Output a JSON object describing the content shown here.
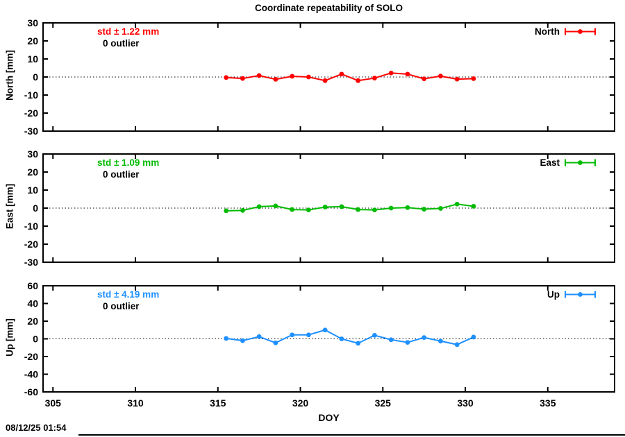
{
  "title": "Coordinate repeatability of SOLO",
  "xlabel": "DOY",
  "timestamp": "08/12/25 01:54",
  "chart_data": {
    "type": "line",
    "x_axis": {
      "label": "DOY",
      "xlim": [
        304.4,
        339.05
      ],
      "xticks": [
        305,
        310,
        315,
        320,
        325,
        330,
        335
      ]
    },
    "x": [
      315.5,
      316.5,
      317.5,
      318.5,
      319.5,
      320.5,
      321.5,
      322.5,
      323.5,
      324.5,
      325.5,
      326.5,
      327.5,
      328.5,
      329.5,
      330.5
    ],
    "panels": [
      {
        "name": "North",
        "ylabel": "North [mm]",
        "std_label": "std ± 1.22 mm",
        "outlier_label": "0 outlier",
        "legend": "North",
        "color": "#ff0000",
        "ylim": [
          -30,
          30
        ],
        "yticks": [
          30,
          20,
          10,
          0,
          -10,
          -20,
          -30
        ],
        "values": [
          -0.3,
          -0.8,
          0.8,
          -1.3,
          0.4,
          0.0,
          -2.0,
          1.6,
          -2.0,
          -0.6,
          2.2,
          1.6,
          -1.0,
          0.5,
          -1.2,
          -0.9
        ]
      },
      {
        "name": "East",
        "ylabel": "East [mm]",
        "std_label": "std ± 1.09 mm",
        "outlier_label": "0 outlier",
        "legend": "East",
        "color": "#00bb00",
        "ylim": [
          -30,
          30
        ],
        "yticks": [
          30,
          20,
          10,
          0,
          -10,
          -20,
          -30
        ],
        "values": [
          -1.5,
          -1.3,
          0.8,
          1.2,
          -0.8,
          -1.0,
          0.6,
          0.8,
          -0.8,
          -1.0,
          0.0,
          0.3,
          -0.6,
          -0.2,
          2.2,
          1.0
        ]
      },
      {
        "name": "Up",
        "ylabel": "Up [mm]",
        "std_label": "std ± 4.19 mm",
        "outlier_label": "0 outlier",
        "legend": "Up",
        "color": "#1e90ff",
        "ylim": [
          -60,
          60
        ],
        "yticks": [
          60,
          40,
          20,
          0,
          -20,
          -40,
          -60
        ],
        "values": [
          0.5,
          -2.0,
          2.5,
          -4.5,
          4.5,
          4.5,
          10.0,
          0.0,
          -5.0,
          4.0,
          -1.0,
          -4.0,
          1.5,
          -2.5,
          -6.5,
          2.0
        ]
      }
    ]
  }
}
